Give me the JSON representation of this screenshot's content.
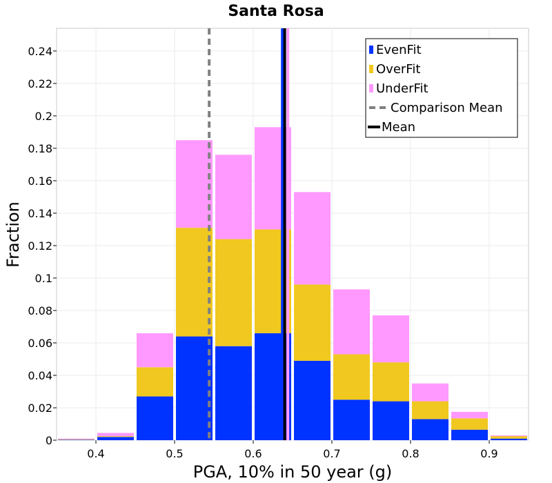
{
  "chart_data": {
    "type": "bar",
    "stacked": true,
    "title": "Santa Rosa",
    "xlabel": "PGA, 10% in 50 year (g)",
    "ylabel": "Fraction",
    "xlim": [
      0.35,
      0.95
    ],
    "ylim": [
      0,
      0.254
    ],
    "bin_width": 0.05,
    "grid": true,
    "legend_position": "top-right",
    "x": [
      0.375,
      0.425,
      0.475,
      0.525,
      0.575,
      0.625,
      0.675,
      0.725,
      0.775,
      0.825,
      0.875,
      0.925
    ],
    "series": [
      {
        "name": "EvenFit",
        "color": "#0033ff",
        "values": [
          0.0003,
          0.002,
          0.027,
          0.064,
          0.058,
          0.066,
          0.049,
          0.025,
          0.024,
          0.013,
          0.0065,
          0.001
        ]
      },
      {
        "name": "OverFit",
        "color": "#f0c820",
        "values": [
          0.0003,
          0.0005,
          0.018,
          0.067,
          0.066,
          0.064,
          0.047,
          0.028,
          0.024,
          0.011,
          0.007,
          0.0015
        ]
      },
      {
        "name": "UnderFit",
        "color": "#ff99ff",
        "values": [
          0.0004,
          0.002,
          0.021,
          0.054,
          0.052,
          0.063,
          0.057,
          0.04,
          0.029,
          0.011,
          0.004,
          0.0005
        ]
      }
    ],
    "x_ticks": [
      "0.4",
      "0.5",
      "0.6",
      "0.7",
      "0.8",
      "0.9"
    ],
    "x_tick_values": [
      0.4,
      0.5,
      0.6,
      0.7,
      0.8,
      0.9
    ],
    "y_ticks": [
      "0",
      "0.02",
      "0.04",
      "0.06",
      "0.08",
      "0.1",
      "0.12",
      "0.14",
      "0.16",
      "0.18",
      "0.2",
      "0.22",
      "0.24"
    ],
    "y_tick_values": [
      0,
      0.02,
      0.04,
      0.06,
      0.08,
      0.1,
      0.12,
      0.14,
      0.16,
      0.18,
      0.2,
      0.22,
      0.24
    ],
    "vertical_lines": [
      {
        "name": "EvenFit",
        "x": 0.637,
        "color": "#0033ff",
        "style": "solid"
      },
      {
        "name": "UnderFit",
        "x": 0.644,
        "color": "#ff99ff",
        "style": "solid"
      },
      {
        "name": "Comparison Mean",
        "x": 0.544,
        "color": "#808080",
        "style": "dashed"
      },
      {
        "name": "Mean",
        "x": 0.64,
        "color": "#000000",
        "style": "solid"
      }
    ],
    "legend": [
      {
        "label": "EvenFit",
        "color": "#0033ff",
        "kind": "box"
      },
      {
        "label": "OverFit",
        "color": "#f0c820",
        "kind": "box"
      },
      {
        "label": "UnderFit",
        "color": "#ff99ff",
        "kind": "box"
      },
      {
        "label": "Comparison Mean",
        "color": "#808080",
        "kind": "dashed"
      },
      {
        "label": "Mean",
        "color": "#000000",
        "kind": "line"
      }
    ]
  }
}
